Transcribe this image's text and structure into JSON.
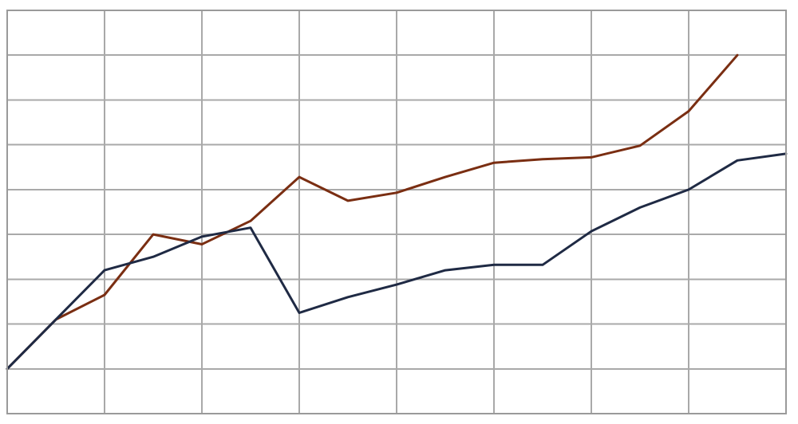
{
  "chart_data": {
    "type": "line",
    "title": "",
    "xlabel": "",
    "ylabel": "",
    "x": [
      0,
      1,
      2,
      3,
      4,
      5,
      6,
      7,
      8,
      9,
      10,
      11,
      12,
      13,
      14,
      15,
      16
    ],
    "xlim": [
      0,
      16
    ],
    "ylim": [
      0,
      9
    ],
    "grid": true,
    "x_gridlines": 8,
    "y_gridlines": 9,
    "legend": "none",
    "series": [
      {
        "color": "#7a2e12",
        "values": [
          1.0,
          2.1,
          2.65,
          4.0,
          3.78,
          4.3,
          5.28,
          4.75,
          4.93,
          5.28,
          5.6,
          5.68,
          5.72,
          5.98,
          6.75,
          8.0,
          null
        ]
      },
      {
        "color": "#1f2a44",
        "values": [
          1.0,
          2.1,
          3.2,
          3.5,
          3.95,
          4.15,
          2.25,
          2.6,
          2.88,
          3.2,
          3.32,
          3.32,
          4.07,
          4.6,
          5.0,
          5.65,
          5.8
        ]
      }
    ]
  }
}
